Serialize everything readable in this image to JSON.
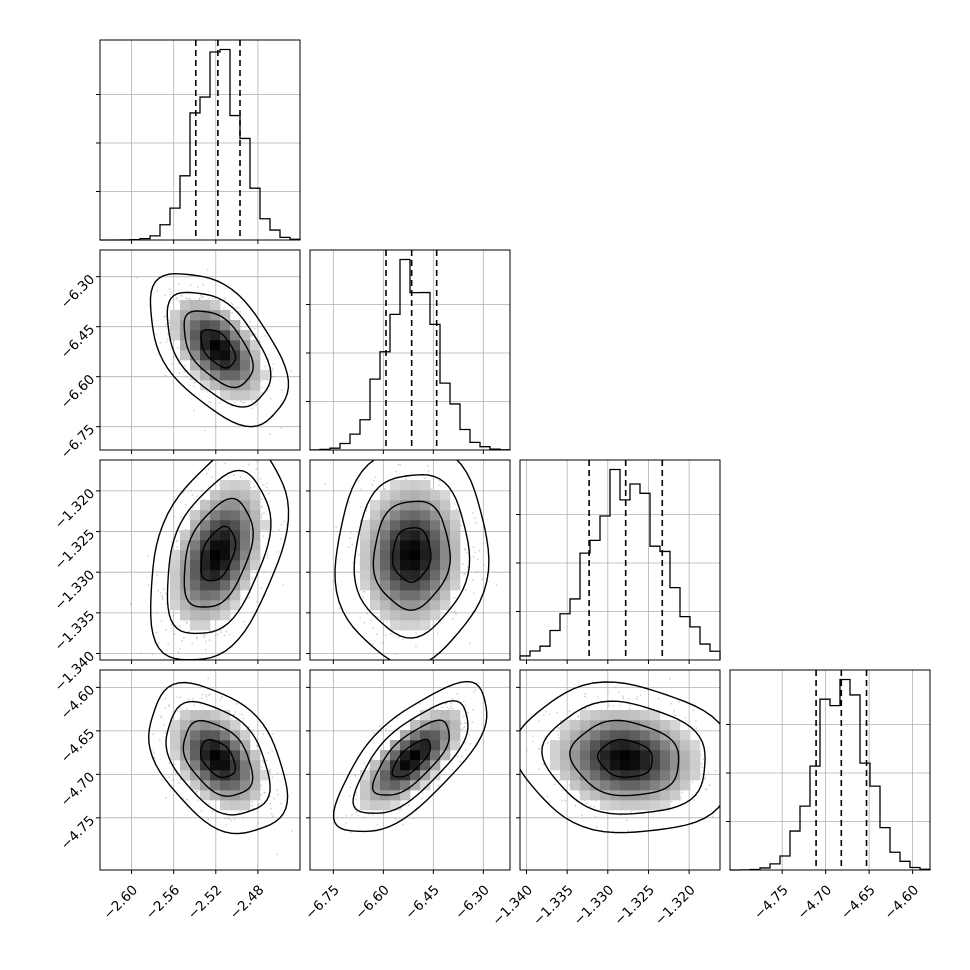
{
  "chart_data": {
    "type": "corner",
    "quantiles": [
      0.16,
      0.5,
      0.84
    ],
    "parameters": [
      {
        "center": -2.518,
        "sd": 0.022,
        "range": [
          -2.63,
          -2.44
        ],
        "ticks": [
          -2.6,
          -2.56,
          -2.52,
          -2.48
        ],
        "tick_labels": [
          "−2.60",
          "−2.56",
          "−2.52",
          "−2.48"
        ],
        "quantile_values": [
          -2.539,
          -2.518,
          -2.497
        ]
      },
      {
        "center": -6.515,
        "sd": 0.077,
        "range": [
          -6.82,
          -6.22
        ],
        "ticks": [
          -6.75,
          -6.6,
          -6.45,
          -6.3
        ],
        "tick_labels": [
          "−6.75",
          "−6.60",
          "−6.45",
          "−6.30"
        ],
        "quantile_values": [
          -6.592,
          -6.515,
          -6.44
        ]
      },
      {
        "center": -1.3278,
        "sd": 0.0045,
        "range": [
          -1.3408,
          -1.3162
        ],
        "ticks": [
          -1.34,
          -1.335,
          -1.33,
          -1.325,
          -1.32
        ],
        "tick_labels": [
          "−1.340",
          "−1.335",
          "−1.330",
          "−1.325",
          "−1.320"
        ],
        "quantile_values": [
          -1.3323,
          -1.3278,
          -1.3233
        ]
      },
      {
        "center": -4.682,
        "sd": 0.029,
        "range": [
          -4.81,
          -4.58
        ],
        "ticks": [
          -4.75,
          -4.7,
          -4.65,
          -4.6
        ],
        "tick_labels": [
          "−4.75",
          "−4.70",
          "−4.65",
          "−4.60"
        ],
        "quantile_values": [
          -4.711,
          -4.682,
          -4.653
        ]
      }
    ],
    "correlations": [
      {
        "row": 1,
        "col": 0,
        "rho": -0.5
      },
      {
        "row": 2,
        "col": 0,
        "rho": 0.4
      },
      {
        "row": 2,
        "col": 1,
        "rho": 0.05
      },
      {
        "row": 3,
        "col": 0,
        "rho": -0.4
      },
      {
        "row": 3,
        "col": 1,
        "rho": 0.7
      },
      {
        "row": 3,
        "col": 2,
        "rho": -0.1
      }
    ],
    "contour_levels_sigma": [
      0.5,
      1.0,
      1.5,
      2.0
    ],
    "grid": true,
    "title": "",
    "xlabel": "",
    "ylabel": ""
  }
}
